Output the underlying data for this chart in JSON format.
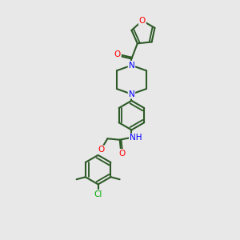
{
  "bg_color": "#e8e8e8",
  "bond_color": "#2d5a27",
  "atom_colors": {
    "O": "#ff0000",
    "N": "#0000ff",
    "Cl": "#00aa00"
  },
  "bond_width": 1.5,
  "dbo": 0.07
}
